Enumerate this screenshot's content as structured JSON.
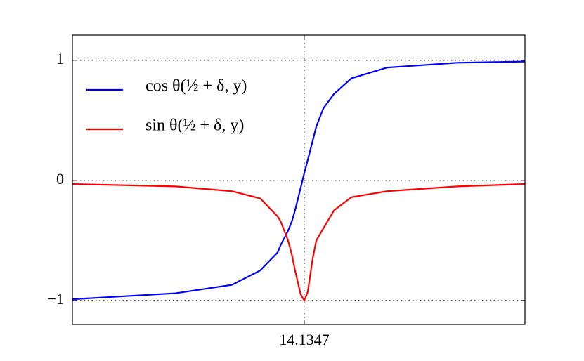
{
  "chart_data": {
    "type": "line",
    "x": [
      13.11,
      13.566,
      13.815,
      13.94,
      14.017,
      14.03,
      14.063,
      14.08,
      14.094,
      14.119,
      14.1347,
      14.15,
      14.172,
      14.188,
      14.219,
      14.266,
      14.343,
      14.5,
      14.81,
      15.11
    ],
    "series": [
      {
        "name": "cos θ(½ + δ, y)",
        "color": "#0000ff",
        "values": [
          -0.99,
          -0.94,
          -0.87,
          -0.75,
          -0.6,
          -0.54,
          -0.42,
          -0.34,
          -0.25,
          -0.06,
          0.06,
          0.17,
          0.33,
          0.45,
          0.6,
          0.72,
          0.85,
          0.94,
          0.98,
          0.99
        ]
      },
      {
        "name": "sin θ(½ + δ, y)",
        "color": "#ff0000",
        "values": [
          -0.03,
          -0.05,
          -0.09,
          -0.15,
          -0.3,
          -0.34,
          -0.5,
          -0.62,
          -0.75,
          -0.95,
          -1,
          -0.93,
          -0.65,
          -0.5,
          -0.4,
          -0.25,
          -0.14,
          -0.09,
          -0.05,
          -0.03
        ]
      }
    ],
    "xlim": [
      13.11,
      15.11
    ],
    "ylim": [
      -1.2,
      1.21
    ],
    "xticks": [
      14.1347
    ],
    "yticks": [
      {
        "value": -1,
        "label": "−1"
      },
      0,
      1
    ],
    "grid": true,
    "legend": "upper left"
  }
}
